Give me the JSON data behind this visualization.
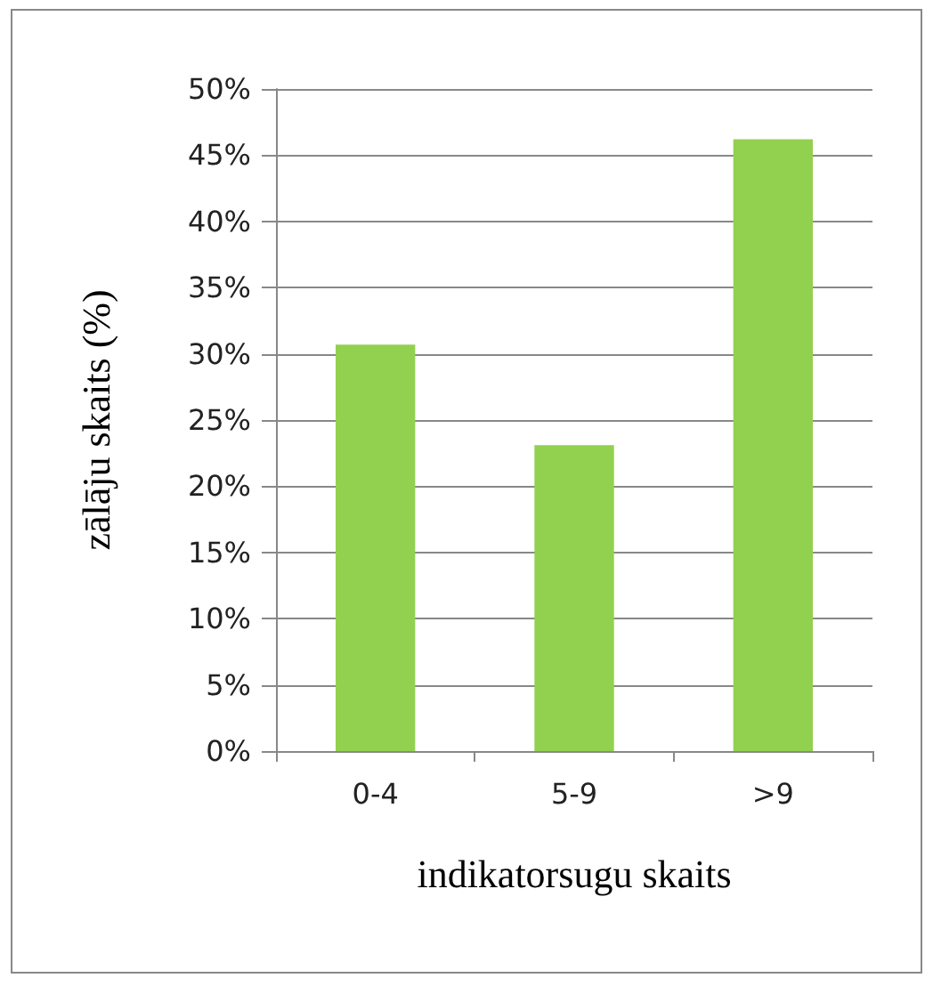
{
  "chart_data": {
    "type": "bar",
    "xlabel": "indikatorsugu skaits",
    "ylabel": "zālāju skaits (%)",
    "categories": [
      "0-4",
      "5-9",
      ">9"
    ],
    "values": [
      30.7,
      23.1,
      46.2
    ],
    "color": "#92d050",
    "ylim": [
      0,
      50
    ],
    "yticks": [
      {
        "value": 0,
        "label": "0%"
      },
      {
        "value": 5,
        "label": "5%"
      },
      {
        "value": 10,
        "label": "10%"
      },
      {
        "value": 15,
        "label": "15%"
      },
      {
        "value": 20,
        "label": "20%"
      },
      {
        "value": 25,
        "label": "25%"
      },
      {
        "value": 30,
        "label": "30%"
      },
      {
        "value": 35,
        "label": "35%"
      },
      {
        "value": 40,
        "label": "40%"
      },
      {
        "value": 45,
        "label": "45%"
      },
      {
        "value": 50,
        "label": "50%"
      }
    ],
    "grid": "y"
  }
}
